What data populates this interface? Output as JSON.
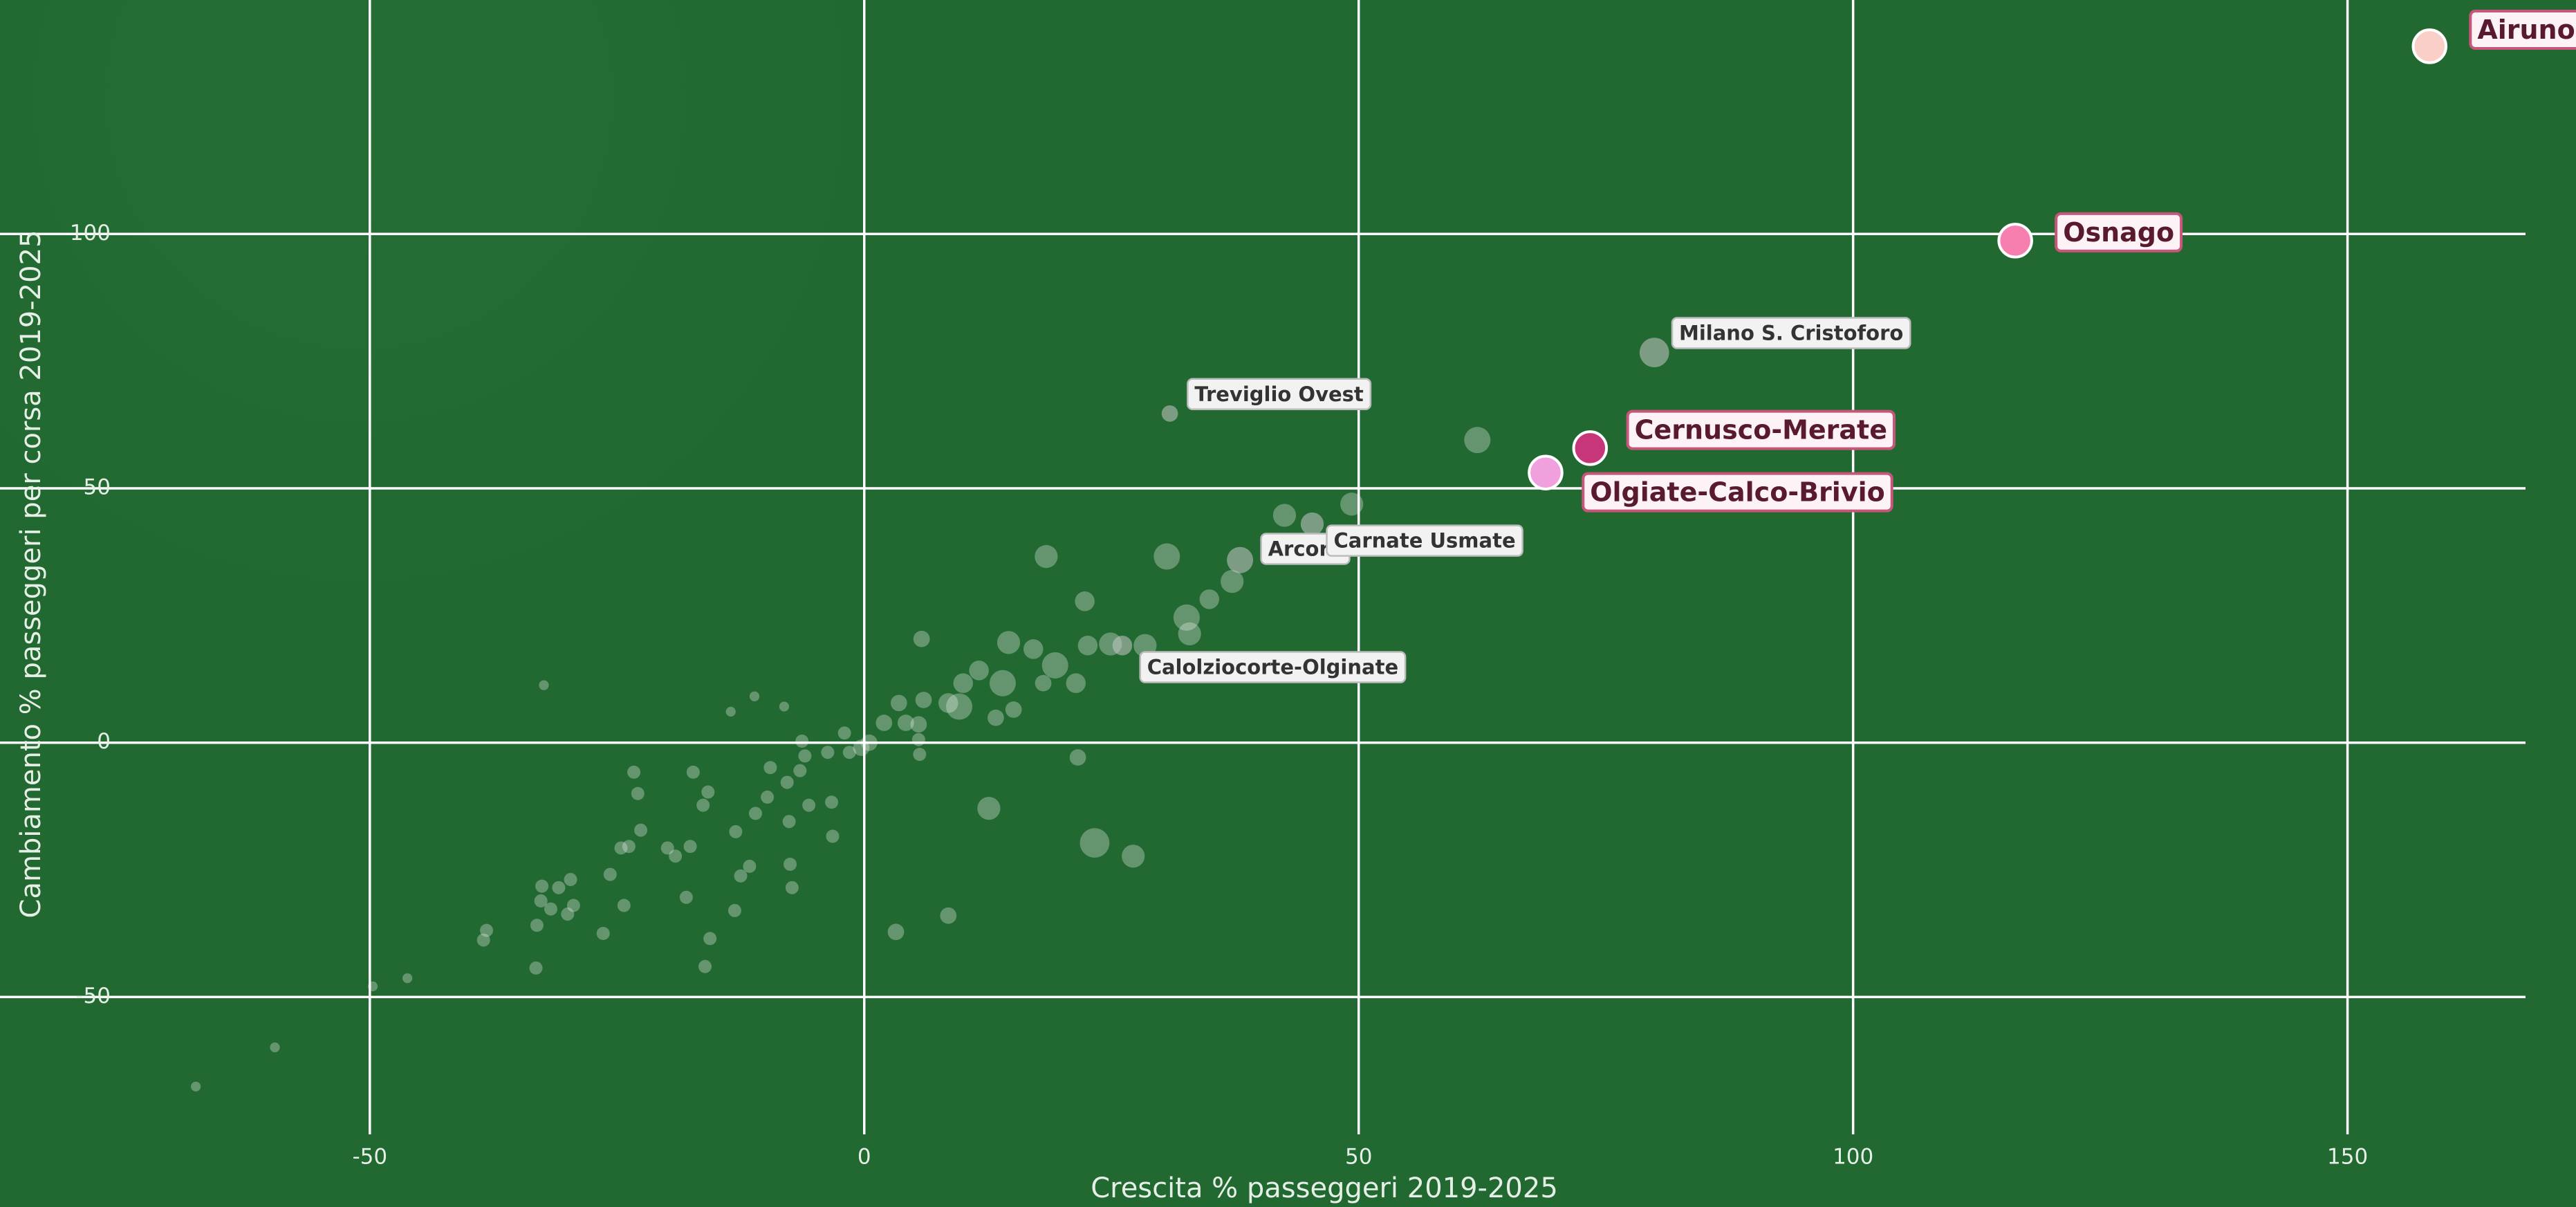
{
  "chart_data": {
    "type": "scatter",
    "x_label": "Crescita % passeggeri 2019-2025",
    "y_label": "Cambiamento % passeggeri per corsa 2019-2025",
    "xlim": [
      -87.4,
      168
    ],
    "ylim": [
      -77,
      146
    ],
    "xticks": [
      -50,
      0,
      50,
      100,
      150
    ],
    "yticks": [
      -50,
      0,
      50,
      100
    ],
    "grid": true,
    "series": [
      {
        "color": "#ffffff",
        "x": [
          62.0,
          49.3,
          42.5,
          37.2,
          34.9,
          30.6,
          32.6,
          32.9,
          18.4,
          22.3,
          22.6,
          28.4,
          24.9,
          14.6,
          17.1,
          14.0,
          19.3,
          11.6,
          10.0,
          9.6,
          8.5,
          15.1,
          13.3,
          21.4,
          18.1,
          5.8,
          6.0,
          3.5,
          4.2,
          2.0,
          0.5,
          -0.3,
          5.6,
          5.5,
          5.5,
          21.6,
          12.6,
          23.3,
          27.2,
          8.5,
          3.2,
          -2.0,
          -1.5,
          -3.7,
          -6.0,
          -6.5,
          -7.8,
          -6.3,
          -8.1,
          -11.1,
          -13.5,
          -9.5,
          -9.8,
          -5.6,
          -3.3,
          -7.6,
          -11.0,
          -13.0,
          -3.2,
          -7.5,
          -7.3,
          -11.6,
          -12.5,
          -13.1,
          -15.6,
          -16.1,
          -17.3,
          -15.8,
          -16.3,
          -17.6,
          -18.0,
          -19.9,
          -19.1,
          -23.3,
          -22.9,
          -22.6,
          -23.8,
          -24.6,
          -24.3,
          -25.7,
          -26.4,
          -29.4,
          -29.7,
          -30.0,
          -30.9,
          -31.7,
          -32.4,
          -32.6,
          -32.7,
          -33.1,
          -33.2,
          -38.2,
          -38.5,
          -46.2,
          -49.7,
          -59.6,
          -67.6
        ],
        "y": [
          59.5,
          46.9,
          44.7,
          31.7,
          28.2,
          36.6,
          24.6,
          21.4,
          36.6,
          27.8,
          19.1,
          19.1,
          19.4,
          19.7,
          18.4,
          11.7,
          15.2,
          14.2,
          11.7,
          7.1,
          7.8,
          6.5,
          4.9,
          11.7,
          11.7,
          20.4,
          8.4,
          7.8,
          3.9,
          3.9,
          0,
          -1,
          -2.3,
          3.6,
          0.6,
          -2.9,
          -12.9,
          -19.7,
          -22.3,
          -34,
          -37.2,
          1.9,
          -1.9,
          -1.9,
          -2.6,
          -5.5,
          -7.8,
          0.3,
          7.1,
          9.1,
          6.1,
          -4.9,
          -10.7,
          -12.3,
          -11.7,
          -15.5,
          -13.9,
          -17.5,
          -18.4,
          -23.9,
          -28.5,
          -24.3,
          -26.2,
          -33,
          -38.5,
          -44,
          -5.8,
          -9.7,
          -12.3,
          -20.4,
          -30.4,
          -20.7,
          -22.3,
          -5.8,
          -10,
          -17.2,
          -20.4,
          -20.7,
          -32,
          -25.9,
          -37.5,
          -32,
          -26.9,
          -33.7,
          -28.5,
          -32.7,
          11.3,
          -28.2,
          -31.1,
          -35.9,
          -44.3,
          -36.9,
          -38.8,
          -46.3,
          -47.9,
          -59.9,
          -67.6
        ],
        "sizes": [
          8,
          7,
          7,
          7,
          6,
          8,
          8,
          7,
          7,
          6,
          6,
          7,
          7,
          7,
          6,
          8,
          8,
          6,
          6,
          8,
          6,
          5,
          5,
          6,
          5,
          5,
          5,
          5,
          5,
          5,
          5,
          5,
          4,
          5,
          4,
          5,
          7,
          9,
          7,
          5,
          5,
          4,
          4,
          4,
          4,
          4,
          4,
          4,
          3,
          3,
          3,
          4,
          4,
          4,
          4,
          4,
          4,
          4,
          4,
          4,
          4,
          4,
          4,
          4,
          4,
          4,
          4,
          4,
          4,
          4,
          4,
          4,
          4,
          4,
          4,
          4,
          4,
          4,
          4,
          4,
          4,
          4,
          4,
          4,
          4,
          4,
          3,
          4,
          4,
          4,
          4,
          4,
          4,
          3,
          3,
          3,
          3
        ]
      }
    ],
    "labeled": [
      {
        "label": "Milano S. Cristoforo",
        "x": 79.9,
        "y": 76.7,
        "size": 9,
        "color": "#c9c9c9",
        "emphasis": "plain"
      },
      {
        "label": "Treviglio Ovest",
        "x": 30.9,
        "y": 64.7,
        "size": 5,
        "color": "#c9c9c9",
        "emphasis": "plain"
      },
      {
        "label": "Arcore",
        "x": 38.0,
        "y": 35.9,
        "size": 8,
        "color": "#c9c9c9",
        "emphasis": "plain"
      },
      {
        "label": "Carnate Usmate",
        "x": 45.3,
        "y": 43.0,
        "size": 7,
        "color": "#c9c9c9",
        "emphasis": "plain"
      },
      {
        "label": "Calolziocorte-Olginate",
        "x": 26.1,
        "y": 19.1,
        "size": 6,
        "color": "#c9c9c9",
        "emphasis": "plain"
      },
      {
        "label": "Airuno",
        "x": 158.3,
        "y": 136.9,
        "size": 10,
        "color": "#f9cfc7",
        "emphasis": "strong"
      },
      {
        "label": "Osnago",
        "x": 116.4,
        "y": 98.7,
        "size": 10,
        "color": "#f77fb0",
        "emphasis": "strong"
      },
      {
        "label": "Cernusco-Merate",
        "x": 73.4,
        "y": 57.9,
        "size": 10,
        "color": "#c8367a",
        "emphasis": "strong"
      },
      {
        "label": "Olgiate-Calco-Brivio",
        "x": 68.9,
        "y": 53.1,
        "size": 10,
        "color": "#f0a0dc",
        "emphasis": "strong"
      }
    ]
  }
}
